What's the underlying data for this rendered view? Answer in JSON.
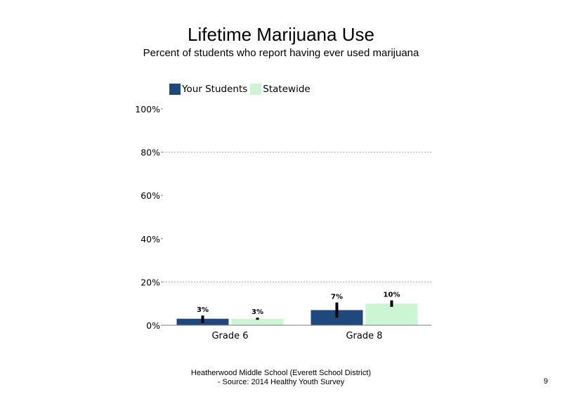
{
  "chart_data": {
    "type": "bar",
    "title": "Lifetime Marijuana Use",
    "subtitle": "Percent of students  who report having ever used marijuana",
    "categories": [
      "Grade 6",
      "Grade 8"
    ],
    "series": [
      {
        "name": "Your Students",
        "color": "#1f497d",
        "values": [
          3,
          7
        ],
        "labels": [
          "3%",
          "7%"
        ],
        "error_low": [
          1,
          3.5
        ],
        "error_high": [
          4.5,
          10.5
        ]
      },
      {
        "name": "Statewide",
        "color": "#ccf5d6",
        "values": [
          3,
          10
        ],
        "labels": [
          "3%",
          "10%"
        ],
        "error_low": [
          2.5,
          8.5
        ],
        "error_high": [
          3.5,
          11.5
        ]
      }
    ],
    "ylim": [
      0,
      100
    ],
    "yticks": [
      0,
      20,
      40,
      60,
      80,
      100
    ],
    "ytick_labels": [
      "0%",
      "20%",
      "40%",
      "60%",
      "80%",
      "100%"
    ],
    "gridlines": [
      20,
      80
    ],
    "legend_position": "top-left"
  },
  "footer": {
    "line1": "Heatherwood Middle School (Everett School District)",
    "line2": "- Source: 2014 Healthy  Youth Survey"
  },
  "page_number": "9"
}
